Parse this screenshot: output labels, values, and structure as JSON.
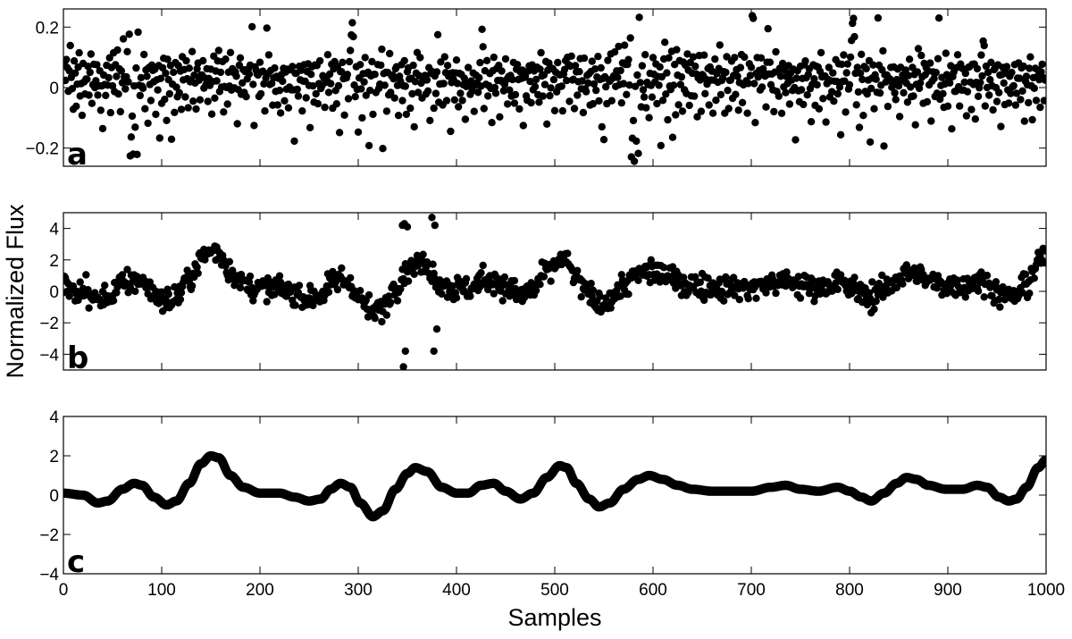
{
  "chart_data": {
    "type": "scatter",
    "ylabel": "Normalized Flux",
    "xlabel": "Samples",
    "xlim": [
      0,
      1000
    ],
    "xticks": [
      0,
      100,
      200,
      300,
      400,
      500,
      600,
      700,
      800,
      900,
      1000
    ],
    "grid": false,
    "marker_color": "#000000",
    "panels": [
      {
        "label": "a",
        "ylim": [
          -0.26,
          0.26
        ],
        "yticks": [
          -0.2,
          0,
          0.2
        ],
        "ytick_labels": [
          "−0.2",
          "0",
          "0.2"
        ],
        "description_of_data": "white-noise scatter around zero",
        "y": [
          0.05,
          0.08,
          0.02,
          0.1,
          0.06,
          -0.02,
          0.07,
          0.11,
          0.04,
          0.0,
          -0.06,
          0.09,
          0.03,
          -0.04,
          0.02,
          0.06,
          0.12,
          -0.01,
          0.04,
          -0.07,
          0.08,
          0.01,
          -0.03,
          0.05,
          0.0,
          0.07,
          -0.05,
          0.03,
          0.09,
          -0.08,
          0.02,
          0.06,
          -0.02,
          0.04,
          0.1,
          -0.04,
          0.01,
          0.07,
          -0.1,
          0.03,
          -0.15,
          0.05,
          0.02,
          -0.03,
          0.08,
          0.0,
          0.04,
          0.12,
          -0.06,
          0.05,
          0.01,
          0.09,
          -0.02,
          0.06,
          0.03,
          0.11,
          -0.01,
          0.04,
          -0.05,
          0.08,
          0.02,
          0.14,
          0.06,
          -0.03,
          0.05,
          0.1,
          0.0,
          0.17,
          -0.25,
          -0.14,
          -0.1,
          -0.24,
          0.03,
          -0.16,
          0.06,
          -0.22,
          0.21,
          0.02,
          -0.04,
          0.05,
          0.0,
          -0.03,
          0.08,
          -0.07,
          0.04,
          0.01,
          -0.1,
          0.06,
          0.02,
          -0.05,
          0.09,
          0.03,
          -0.01,
          0.07,
          -0.08,
          0.04,
          0.0,
          0.05,
          -0.19,
          0.02,
          -0.06,
          0.08,
          0.12,
          -0.03,
          0.04,
          -0.12,
          0.07,
          0.01,
          -0.02,
          0.09,
          -0.16,
          0.03,
          0.05,
          -0.07,
          0.1,
          0.02,
          -0.04,
          0.06,
          0.0,
          0.03,
          -0.09,
          0.08,
          0.01,
          0.05,
          -0.02,
          0.11,
          0.04,
          -0.06,
          0.07,
          0.0,
          0.03,
          0.09,
          -0.03,
          0.06,
          0.02,
          -0.1,
          0.04,
          0.08,
          0.0,
          -0.05,
          0.07,
          0.03,
          0.1,
          -0.02,
          0.05,
          0.01,
          0.08,
          -0.07,
          0.04,
          0.02,
          0.06,
          -0.11,
          0.03,
          0.09,
          -0.04,
          0.05,
          0.0,
          0.07,
          0.13,
          -0.02,
          0.04,
          0.01,
          0.06,
          -0.08,
          0.03,
          0.08,
          0.02,
          -0.05,
          0.05,
          0.0,
          0.09,
          -0.03,
          0.04,
          0.07,
          -0.01,
          0.03,
          0.06,
          -0.09,
          0.02,
          0.05,
          0.1,
          -0.04,
          0.03,
          0.08,
          0.0,
          0.05,
          -0.06,
          0.02,
          0.07,
          0.04,
          0.09,
          0.25,
          0.2,
          0.01,
          -0.14,
          0.05,
          0.08,
          0.03,
          0.06,
          -0.02,
          0.1,
          0.0,
          0.04,
          0.07,
          0.02,
          -0.05,
          0.06,
          0.22,
          0.03,
          0.08,
          -0.01,
          0.05,
          0.02,
          -0.07,
          0.04,
          0.09,
          0.0,
          0.03,
          -0.04,
          0.06,
          0.01,
          -0.1,
          0.05,
          0.02,
          0.07,
          -0.03,
          0.04,
          0.0,
          0.08,
          -0.06,
          0.03,
          0.05,
          -0.02,
          0.09,
          0.01,
          -0.15,
          0.04,
          0.06,
          0.0,
          -0.05,
          0.07,
          0.02,
          0.03,
          -0.08,
          0.05,
          0.1,
          0.01,
          -0.03,
          0.04,
          0.06,
          0.0,
          -0.12,
          0.03,
          0.08,
          0.02,
          -0.04,
          0.05,
          0.0,
          0.07,
          -0.06,
          0.03,
          0.09,
          0.01,
          -0.02,
          0.06,
          0.04,
          -0.09,
          0.02,
          0.05,
          0.08,
          -0.01,
          0.03,
          0.0,
          0.06,
          -0.05,
          0.04,
          0.1,
          0.02,
          -0.03,
          0.07,
          0.01,
          -0.14,
          0.05,
          0.03,
          0.08,
          0.0,
          -0.07,
          0.04,
          0.06,
          0.02,
          -0.02,
          0.09,
          0.13,
          0.19,
          0.22,
          0.15,
          0.03,
          -0.05,
          0.06,
          0.01,
          -0.16,
          0.04,
          0.08,
          0.02,
          -0.1,
          0.05,
          0.0,
          0.07,
          -0.04,
          0.03,
          0.06,
          -0.2,
          0.01,
          0.04,
          0.09,
          -0.06,
          0.02,
          0.05,
          0.0,
          0.26,
          0.08,
          -0.03,
          0.03,
          0.06,
          0.11,
          -0.18,
          0.04,
          0.02,
          0.07,
          -0.08,
          0.05,
          0.0,
          0.09,
          -0.02,
          0.03,
          0.06,
          0.01,
          -0.05,
          0.04,
          0.08,
          0.02,
          -0.11,
          0.05,
          0.0,
          0.07,
          -0.03,
          0.03,
          0.06,
          0.01,
          -0.07,
          0.04,
          0.09,
          0.02,
          -0.04,
          0.05,
          0.0,
          0.07,
          -0.1,
          0.03,
          0.06,
          0.12,
          -0.02,
          0.04,
          0.08,
          0.01,
          -0.06,
          0.05,
          0.02,
          0.07,
          -0.03,
          0.03,
          0.0,
          0.06,
          -0.09,
          0.04,
          0.08,
          0.02,
          -0.05,
          0.05,
          0.01,
          0.07,
          0.2,
          -0.02,
          0.03,
          0.06,
          0.0,
          -0.08,
          0.04,
          0.09,
          0.02,
          -0.04,
          0.05,
          0.01,
          0.07,
          -0.12,
          0.03,
          0.06,
          0.0,
          -0.03,
          0.04,
          0.08,
          0.02,
          -0.06,
          0.05,
          0.01,
          0.07,
          -0.02,
          0.03,
          0.06,
          -0.1,
          0.0,
          0.04,
          0.09,
          0.02,
          -0.05,
          0.05,
          0.01,
          0.07,
          -0.08,
          0.03,
          0.06,
          0.0,
          -0.03,
          0.04,
          0.08,
          0.02,
          0.17,
          0.11,
          -0.06,
          0.05,
          0.01,
          0.07,
          -0.02,
          0.03,
          0.06,
          0.0,
          -0.09,
          0.04,
          0.08,
          0.02,
          -0.04,
          0.05,
          0.01,
          0.07,
          -0.11,
          0.03,
          0.06,
          0.0,
          -0.03,
          0.04,
          0.08,
          0.02,
          -0.07,
          0.05,
          0.01,
          0.07,
          -0.02,
          0.03,
          0.06,
          -0.06,
          0.0,
          0.04,
          0.09,
          0.02,
          -0.05,
          0.05,
          0.01,
          0.07,
          -0.13,
          0.03,
          0.06,
          0.0,
          -0.03,
          0.04,
          0.08,
          0.02,
          -0.08,
          0.05,
          0.01,
          0.07,
          -0.02,
          0.03,
          0.06,
          0.0,
          -0.05,
          0.04,
          0.09,
          0.02,
          -0.04,
          0.05,
          0.01,
          0.07,
          -0.1,
          0.03,
          0.06,
          0.0,
          -0.03,
          0.04,
          0.08,
          0.02,
          -0.06,
          0.05,
          0.01,
          0.07,
          -0.02,
          0.03,
          0.06,
          0.0,
          -0.09,
          0.04
        ],
        "points_plotted": 1000
      },
      {
        "label": "b",
        "ylim": [
          -5,
          5
        ],
        "yticks": [
          -4,
          -2,
          0,
          2,
          4
        ],
        "ytick_labels": [
          "−4",
          "−2",
          "0",
          "2",
          "4"
        ],
        "description_of_data": "noisy oscillating signal with outliers near samples 345 and 375",
        "outliers": [
          [
            345,
            4.2
          ],
          [
            347,
            4.3
          ],
          [
            350,
            4.1
          ],
          [
            375,
            4.7
          ],
          [
            378,
            4.2
          ],
          [
            346,
            -4.8
          ],
          [
            348,
            -3.8
          ],
          [
            377,
            -3.8
          ],
          [
            380,
            -2.4
          ]
        ],
        "points_plotted": 1000
      },
      {
        "label": "c",
        "ylim": [
          -4,
          4
        ],
        "yticks": [
          -4,
          -2,
          0,
          2,
          4
        ],
        "ytick_labels": [
          "−4",
          "−2",
          "0",
          "2",
          "4"
        ],
        "description_of_data": "smoothed underlying signal",
        "knots": [
          [
            0,
            0.1
          ],
          [
            20,
            0.0
          ],
          [
            35,
            -0.4
          ],
          [
            45,
            -0.3
          ],
          [
            60,
            0.3
          ],
          [
            72,
            0.6
          ],
          [
            80,
            0.5
          ],
          [
            92,
            -0.1
          ],
          [
            105,
            -0.5
          ],
          [
            115,
            -0.3
          ],
          [
            128,
            0.6
          ],
          [
            140,
            1.6
          ],
          [
            150,
            2.0
          ],
          [
            158,
            1.9
          ],
          [
            170,
            1.0
          ],
          [
            183,
            0.4
          ],
          [
            200,
            0.1
          ],
          [
            220,
            0.1
          ],
          [
            235,
            -0.1
          ],
          [
            250,
            -0.3
          ],
          [
            262,
            -0.2
          ],
          [
            272,
            0.3
          ],
          [
            282,
            0.6
          ],
          [
            292,
            0.4
          ],
          [
            302,
            -0.4
          ],
          [
            315,
            -1.1
          ],
          [
            325,
            -0.8
          ],
          [
            338,
            0.3
          ],
          [
            350,
            1.1
          ],
          [
            358,
            1.4
          ],
          [
            370,
            1.2
          ],
          [
            385,
            0.4
          ],
          [
            400,
            0.1
          ],
          [
            412,
            0.1
          ],
          [
            425,
            0.5
          ],
          [
            438,
            0.6
          ],
          [
            450,
            0.2
          ],
          [
            465,
            -0.2
          ],
          [
            478,
            0.1
          ],
          [
            492,
            0.9
          ],
          [
            505,
            1.5
          ],
          [
            512,
            1.4
          ],
          [
            522,
            0.6
          ],
          [
            535,
            -0.2
          ],
          [
            545,
            -0.6
          ],
          [
            556,
            -0.4
          ],
          [
            570,
            0.3
          ],
          [
            585,
            0.8
          ],
          [
            596,
            1.0
          ],
          [
            610,
            0.8
          ],
          [
            625,
            0.5
          ],
          [
            640,
            0.3
          ],
          [
            660,
            0.2
          ],
          [
            680,
            0.2
          ],
          [
            700,
            0.2
          ],
          [
            720,
            0.4
          ],
          [
            735,
            0.5
          ],
          [
            750,
            0.3
          ],
          [
            768,
            0.2
          ],
          [
            788,
            0.4
          ],
          [
            800,
            0.2
          ],
          [
            812,
            -0.1
          ],
          [
            822,
            -0.3
          ],
          [
            835,
            0.1
          ],
          [
            848,
            0.6
          ],
          [
            858,
            0.9
          ],
          [
            868,
            0.8
          ],
          [
            880,
            0.5
          ],
          [
            898,
            0.3
          ],
          [
            915,
            0.3
          ],
          [
            930,
            0.5
          ],
          [
            940,
            0.4
          ],
          [
            952,
            -0.1
          ],
          [
            962,
            -0.3
          ],
          [
            970,
            -0.2
          ],
          [
            980,
            0.4
          ],
          [
            992,
            1.4
          ],
          [
            1000,
            1.8
          ]
        ],
        "points_plotted": 1000
      }
    ]
  }
}
